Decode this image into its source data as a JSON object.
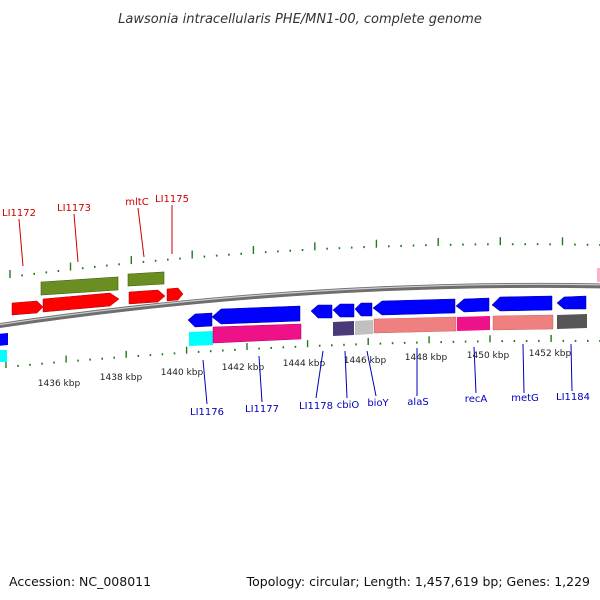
{
  "title": "Lawsonia intracellularis PHE/MN1-00, complete genome",
  "footer": {
    "accession": "Accession: NC_008011",
    "summary": "Topology: circular; Length: 1,457,619 bp; Genes: 1,229"
  },
  "colors": {
    "backbone": "#7a7a7a",
    "tick": "#1f7a1f",
    "forward_label": "#cc0000",
    "reverse_label": "#0000bb",
    "olive": "#6b8e23",
    "red": "#ff0000",
    "blue": "#0000ff",
    "cyan": "#00ffff",
    "magenta": "#ee1188",
    "slate": "#4a3a7a",
    "lightgray": "#c0c0c0",
    "salmon": "#f08080",
    "darkgray": "#555555"
  },
  "ticks": [
    {
      "label": "1436 kbp"
    },
    {
      "label": "1438 kbp"
    },
    {
      "label": "1440 kbp"
    },
    {
      "label": "1442 kbp"
    },
    {
      "label": "1444 kbp"
    },
    {
      "label": "1446 kbp"
    },
    {
      "label": "1448 kbp"
    },
    {
      "label": "1450 kbp"
    },
    {
      "label": "1452 kbp"
    }
  ],
  "forward_labels": [
    {
      "text": "LI1172"
    },
    {
      "text": "LI1173"
    },
    {
      "text": "mltC"
    },
    {
      "text": "LI1175"
    }
  ],
  "reverse_labels": [
    {
      "text": "LI1176"
    },
    {
      "text": "LI1177"
    },
    {
      "text": "LI1178"
    },
    {
      "text": "cbiO"
    },
    {
      "text": "bioY"
    },
    {
      "text": "alaS"
    },
    {
      "text": "recA"
    },
    {
      "text": "metG"
    },
    {
      "text": "LI1184"
    }
  ]
}
